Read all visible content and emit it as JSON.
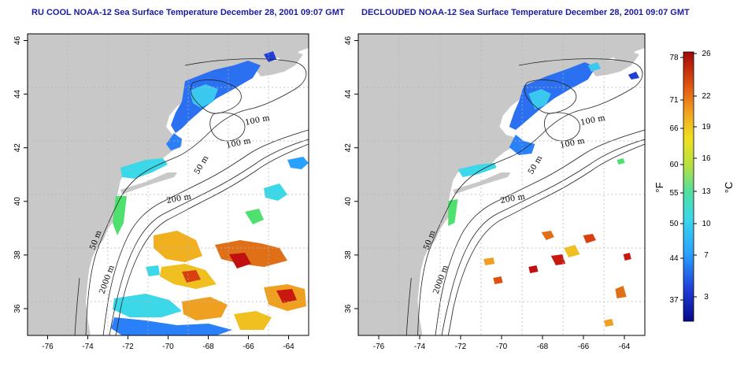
{
  "titles": {
    "left": "RU COOL NOAA-12 Sea Surface Temperature December 28, 2001 09:07 GMT",
    "right": "DECLOUDED NOAA-12 Sea Surface Temperature December 28, 2001 09:07 GMT"
  },
  "axes": {
    "lon_ticks": [
      "-76",
      "-74",
      "-72",
      "-70",
      "-68",
      "-66",
      "-64"
    ],
    "lat_ticks": [
      "36",
      "38",
      "40",
      "42",
      "44",
      "46"
    ]
  },
  "contour_labels": {
    "left": [
      "100 m",
      "100 m",
      "50 m",
      "200 m",
      "50 m",
      "2000 m"
    ],
    "right": [
      "100 m",
      "100 m",
      "50 m",
      "200 m",
      "50 m",
      "2000 m"
    ]
  },
  "colorbar": {
    "fahrenheit_ticks": [
      "78",
      "71",
      "66",
      "60",
      "55",
      "50",
      "44",
      "37"
    ],
    "celsius_ticks": [
      "26",
      "22",
      "19",
      "16",
      "13",
      "10",
      "7",
      "3"
    ],
    "unit_f": "°F",
    "unit_c": "°C"
  },
  "colors": {
    "land": "#c8c8c8",
    "grid": "#b4b4b4",
    "cold": "#1f3fd8",
    "cool": "#2aa0ff",
    "mid": "#3ad8e8",
    "warm": "#f0c020",
    "hot": "#d42010"
  }
}
